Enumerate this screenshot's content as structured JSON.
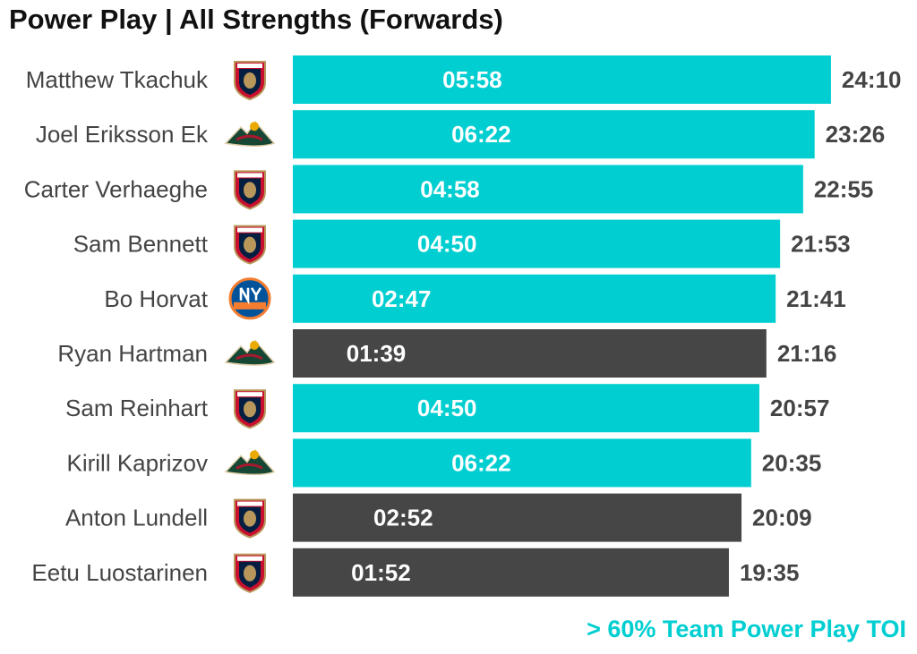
{
  "title": "Power Play | All Strengths (Forwards)",
  "footnote": "> 60% Team Power Play TOI",
  "colors": {
    "highlight": "#00CED1",
    "default": "#464646",
    "footnote": "#00CED1",
    "title": "#111111",
    "label": "#444444"
  },
  "chart_data": {
    "type": "bar",
    "orientation": "horizontal",
    "title": "Power Play | All Strengths (Forwards)",
    "xlabel": "",
    "ylabel": "",
    "value_unit": "minutes",
    "xlim": [
      0,
      24.17
    ],
    "grid": false,
    "categories": [
      "Matthew Tkachuk",
      "Joel Eriksson Ek",
      "Carter Verhaeghe",
      "Sam Bennett",
      "Bo Horvat",
      "Ryan Hartman",
      "Sam Reinhart",
      "Kirill Kaprizov",
      "Anton Lundell",
      "Eetu Luostarinen"
    ],
    "teams": [
      "florida-panthers",
      "minnesota-wild",
      "florida-panthers",
      "florida-panthers",
      "new-york-islanders",
      "minnesota-wild",
      "florida-panthers",
      "minnesota-wild",
      "florida-panthers",
      "florida-panthers"
    ],
    "series": [
      {
        "name": "All Strengths TOI",
        "values": [
          24.167,
          23.433,
          22.917,
          21.883,
          21.683,
          21.267,
          20.95,
          20.583,
          20.15,
          19.583
        ],
        "labels": [
          "24:10",
          "23:26",
          "22:55",
          "21:53",
          "21:41",
          "21:16",
          "20:57",
          "20:35",
          "20:09",
          "19:35"
        ]
      },
      {
        "name": "Power Play TOI",
        "values": [
          5.967,
          6.367,
          4.967,
          4.833,
          2.783,
          1.65,
          4.833,
          6.367,
          2.867,
          1.867
        ],
        "labels": [
          "05:58",
          "06:22",
          "04:58",
          "04:50",
          "02:47",
          "01:39",
          "04:50",
          "06:22",
          "02:52",
          "01:52"
        ]
      }
    ],
    "highlighted": [
      true,
      true,
      true,
      true,
      true,
      false,
      true,
      true,
      false,
      false
    ],
    "highlight_rule": "> 60% Team Power Play TOI"
  }
}
